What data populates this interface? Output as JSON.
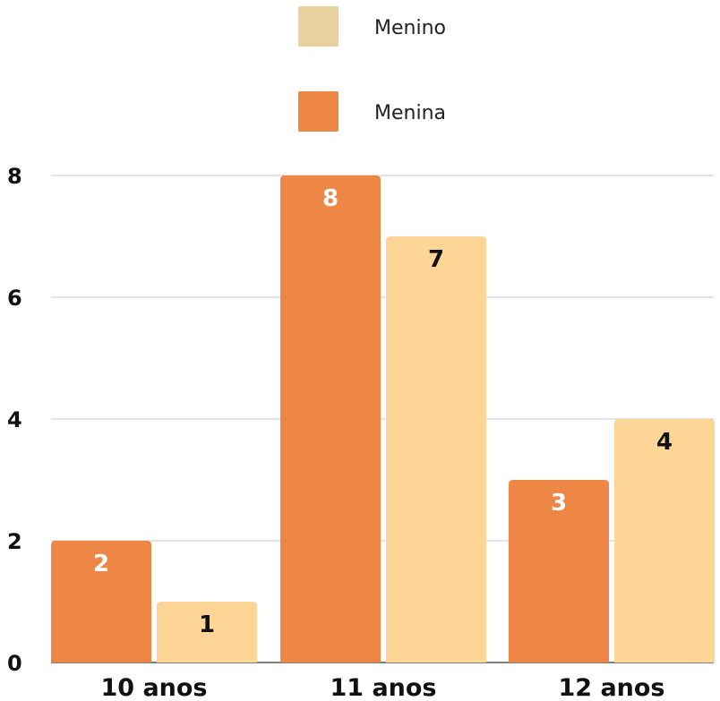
{
  "colors": {
    "menina": "#EE8645",
    "menino_legend": "#E8D19C",
    "menino_bar": "#FDD597",
    "grid": "#C8C8C8",
    "axis": "#555555",
    "label_on_dark": "#FFFFFF",
    "label_on_light": "#111111"
  },
  "chart_data": {
    "type": "bar",
    "categories": [
      "10 anos",
      "11 anos",
      "12 anos"
    ],
    "series": [
      {
        "name": "Menina",
        "values": [
          2,
          8,
          3
        ]
      },
      {
        "name": "Menino",
        "values": [
          1,
          7,
          4
        ]
      }
    ],
    "legend": [
      {
        "name": "Menino"
      },
      {
        "name": "Menina"
      }
    ],
    "yticks": [
      "0",
      "2",
      "4",
      "6",
      "8"
    ],
    "ylim": [
      0,
      8
    ],
    "grid": true,
    "legend_position": "top-center"
  }
}
